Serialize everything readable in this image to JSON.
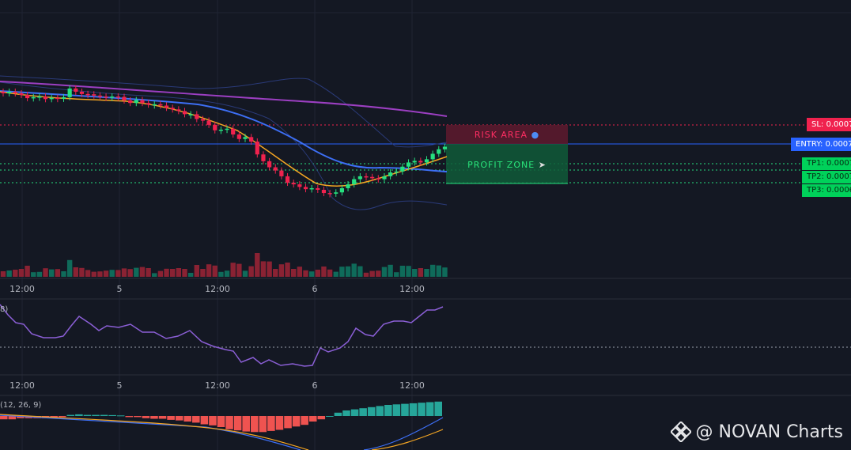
{
  "chart_data": {
    "type": "candlestick",
    "time_axis_labels": [
      "12:00",
      "5",
      "12:00",
      "6",
      "12:00"
    ],
    "price_levels": {
      "sl_label": "SL: 0.0007",
      "entry_label": "ENTRY: 0.0007",
      "tp1_label": "TP1: 0.0007",
      "tp2_label": "TP2: 0.0007",
      "tp3_label": "TP3: 0.0006"
    },
    "zones": {
      "risk_label": "RISK AREA",
      "profit_label": "PROFIT ZONE"
    },
    "candles_close": [
      60,
      60.5,
      60,
      59.5,
      58.5,
      58.8,
      59,
      58.2,
      58.6,
      58.3,
      58.8,
      61.5,
      60.5,
      59.8,
      59.7,
      59.3,
      59,
      58.7,
      59,
      58.9,
      57.8,
      57,
      57.9,
      57,
      56.5,
      56.6,
      56.2,
      55.5,
      55,
      54.5,
      53.5,
      53.5,
      52,
      51.5,
      50.2,
      48.5,
      48.7,
      49,
      47.2,
      45.8,
      46.4,
      45,
      41,
      38.9,
      37,
      36,
      34.2,
      32.2,
      31.7,
      30.9,
      30.2,
      30.5,
      30,
      29,
      28.8,
      29.2,
      30.5,
      31.7,
      33.3,
      34.2,
      34,
      33.6,
      33.3,
      34.2,
      35.4,
      35.7,
      37.2,
      38.5,
      39,
      38.5,
      39.5,
      41.2,
      42.6,
      43.4
    ],
    "rsi_label": "8)",
    "macd_label": "(12, 26, 9)",
    "macd_hist": [
      -0.3,
      -0.3,
      -0.2,
      -0.2,
      -0.2,
      -0.2,
      -0.2,
      -0.1,
      0.1,
      0.15,
      0.1,
      0.1,
      0.1,
      0.08,
      0.05,
      -0.1,
      -0.1,
      -0.2,
      -0.25,
      -0.25,
      -0.35,
      -0.4,
      -0.5,
      -0.6,
      -0.75,
      -0.85,
      -1,
      -1.2,
      -1.3,
      -1.4,
      -1.45,
      -1.45,
      -1.35,
      -1.25,
      -1.1,
      -0.95,
      -0.8,
      -0.5,
      -0.3,
      0,
      0.3,
      0.5,
      0.6,
      0.7,
      0.8,
      0.9,
      1,
      1.05,
      1.1,
      1.15,
      1.2,
      1.25,
      1.3
    ]
  },
  "colors": {
    "up": "#26e07f",
    "down": "#f0224e",
    "ema_fast": "#f5a623",
    "ema_mid": "#3d6ff5",
    "ema_slow": "#9c3fc2",
    "rsi": "#8b5fd6",
    "macd": "#3d6ff5",
    "signal": "#f5a623"
  },
  "watermark": {
    "icon": "binance-diamond-icon",
    "text": "@ NOVAN Charts"
  }
}
